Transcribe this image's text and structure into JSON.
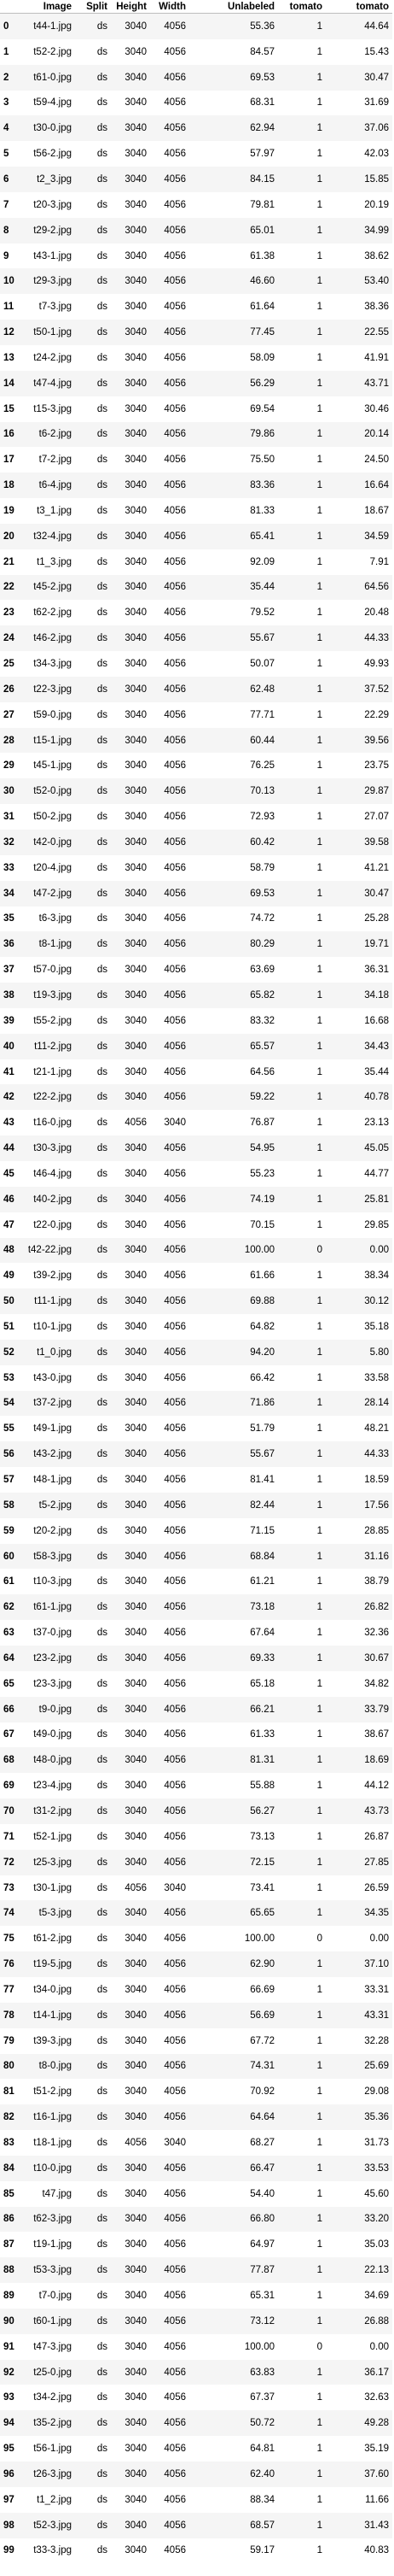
{
  "table": {
    "columns": [
      "",
      "Image",
      "Split",
      "Height",
      "Width",
      "Unlabeled",
      "tomato",
      "tomato"
    ],
    "rows": [
      [
        "0",
        "t44-1.jpg",
        "ds",
        "3040",
        "4056",
        "55.36",
        "1",
        "44.64"
      ],
      [
        "1",
        "t52-2.jpg",
        "ds",
        "3040",
        "4056",
        "84.57",
        "1",
        "15.43"
      ],
      [
        "2",
        "t61-0.jpg",
        "ds",
        "3040",
        "4056",
        "69.53",
        "1",
        "30.47"
      ],
      [
        "3",
        "t59-4.jpg",
        "ds",
        "3040",
        "4056",
        "68.31",
        "1",
        "31.69"
      ],
      [
        "4",
        "t30-0.jpg",
        "ds",
        "3040",
        "4056",
        "62.94",
        "1",
        "37.06"
      ],
      [
        "5",
        "t56-2.jpg",
        "ds",
        "3040",
        "4056",
        "57.97",
        "1",
        "42.03"
      ],
      [
        "6",
        "t2_3.jpg",
        "ds",
        "3040",
        "4056",
        "84.15",
        "1",
        "15.85"
      ],
      [
        "7",
        "t20-3.jpg",
        "ds",
        "3040",
        "4056",
        "79.81",
        "1",
        "20.19"
      ],
      [
        "8",
        "t29-2.jpg",
        "ds",
        "3040",
        "4056",
        "65.01",
        "1",
        "34.99"
      ],
      [
        "9",
        "t43-1.jpg",
        "ds",
        "3040",
        "4056",
        "61.38",
        "1",
        "38.62"
      ],
      [
        "10",
        "t29-3.jpg",
        "ds",
        "3040",
        "4056",
        "46.60",
        "1",
        "53.40"
      ],
      [
        "11",
        "t7-3.jpg",
        "ds",
        "3040",
        "4056",
        "61.64",
        "1",
        "38.36"
      ],
      [
        "12",
        "t50-1.jpg",
        "ds",
        "3040",
        "4056",
        "77.45",
        "1",
        "22.55"
      ],
      [
        "13",
        "t24-2.jpg",
        "ds",
        "3040",
        "4056",
        "58.09",
        "1",
        "41.91"
      ],
      [
        "14",
        "t47-4.jpg",
        "ds",
        "3040",
        "4056",
        "56.29",
        "1",
        "43.71"
      ],
      [
        "15",
        "t15-3.jpg",
        "ds",
        "3040",
        "4056",
        "69.54",
        "1",
        "30.46"
      ],
      [
        "16",
        "t6-2.jpg",
        "ds",
        "3040",
        "4056",
        "79.86",
        "1",
        "20.14"
      ],
      [
        "17",
        "t7-2.jpg",
        "ds",
        "3040",
        "4056",
        "75.50",
        "1",
        "24.50"
      ],
      [
        "18",
        "t6-4.jpg",
        "ds",
        "3040",
        "4056",
        "83.36",
        "1",
        "16.64"
      ],
      [
        "19",
        "t3_1.jpg",
        "ds",
        "3040",
        "4056",
        "81.33",
        "1",
        "18.67"
      ],
      [
        "20",
        "t32-4.jpg",
        "ds",
        "3040",
        "4056",
        "65.41",
        "1",
        "34.59"
      ],
      [
        "21",
        "t1_3.jpg",
        "ds",
        "3040",
        "4056",
        "92.09",
        "1",
        "7.91"
      ],
      [
        "22",
        "t45-2.jpg",
        "ds",
        "3040",
        "4056",
        "35.44",
        "1",
        "64.56"
      ],
      [
        "23",
        "t62-2.jpg",
        "ds",
        "3040",
        "4056",
        "79.52",
        "1",
        "20.48"
      ],
      [
        "24",
        "t46-2.jpg",
        "ds",
        "3040",
        "4056",
        "55.67",
        "1",
        "44.33"
      ],
      [
        "25",
        "t34-3.jpg",
        "ds",
        "3040",
        "4056",
        "50.07",
        "1",
        "49.93"
      ],
      [
        "26",
        "t22-3.jpg",
        "ds",
        "3040",
        "4056",
        "62.48",
        "1",
        "37.52"
      ],
      [
        "27",
        "t59-0.jpg",
        "ds",
        "3040",
        "4056",
        "77.71",
        "1",
        "22.29"
      ],
      [
        "28",
        "t15-1.jpg",
        "ds",
        "3040",
        "4056",
        "60.44",
        "1",
        "39.56"
      ],
      [
        "29",
        "t45-1.jpg",
        "ds",
        "3040",
        "4056",
        "76.25",
        "1",
        "23.75"
      ],
      [
        "30",
        "t52-0.jpg",
        "ds",
        "3040",
        "4056",
        "70.13",
        "1",
        "29.87"
      ],
      [
        "31",
        "t50-2.jpg",
        "ds",
        "3040",
        "4056",
        "72.93",
        "1",
        "27.07"
      ],
      [
        "32",
        "t42-0.jpg",
        "ds",
        "3040",
        "4056",
        "60.42",
        "1",
        "39.58"
      ],
      [
        "33",
        "t20-4.jpg",
        "ds",
        "3040",
        "4056",
        "58.79",
        "1",
        "41.21"
      ],
      [
        "34",
        "t47-2.jpg",
        "ds",
        "3040",
        "4056",
        "69.53",
        "1",
        "30.47"
      ],
      [
        "35",
        "t6-3.jpg",
        "ds",
        "3040",
        "4056",
        "74.72",
        "1",
        "25.28"
      ],
      [
        "36",
        "t8-1.jpg",
        "ds",
        "3040",
        "4056",
        "80.29",
        "1",
        "19.71"
      ],
      [
        "37",
        "t57-0.jpg",
        "ds",
        "3040",
        "4056",
        "63.69",
        "1",
        "36.31"
      ],
      [
        "38",
        "t19-3.jpg",
        "ds",
        "3040",
        "4056",
        "65.82",
        "1",
        "34.18"
      ],
      [
        "39",
        "t55-2.jpg",
        "ds",
        "3040",
        "4056",
        "83.32",
        "1",
        "16.68"
      ],
      [
        "40",
        "t11-2.jpg",
        "ds",
        "3040",
        "4056",
        "65.57",
        "1",
        "34.43"
      ],
      [
        "41",
        "t21-1.jpg",
        "ds",
        "3040",
        "4056",
        "64.56",
        "1",
        "35.44"
      ],
      [
        "42",
        "t22-2.jpg",
        "ds",
        "3040",
        "4056",
        "59.22",
        "1",
        "40.78"
      ],
      [
        "43",
        "t16-0.jpg",
        "ds",
        "4056",
        "3040",
        "76.87",
        "1",
        "23.13"
      ],
      [
        "44",
        "t30-3.jpg",
        "ds",
        "3040",
        "4056",
        "54.95",
        "1",
        "45.05"
      ],
      [
        "45",
        "t46-4.jpg",
        "ds",
        "3040",
        "4056",
        "55.23",
        "1",
        "44.77"
      ],
      [
        "46",
        "t40-2.jpg",
        "ds",
        "3040",
        "4056",
        "74.19",
        "1",
        "25.81"
      ],
      [
        "47",
        "t22-0.jpg",
        "ds",
        "3040",
        "4056",
        "70.15",
        "1",
        "29.85"
      ],
      [
        "48",
        "t42-22.jpg",
        "ds",
        "3040",
        "4056",
        "100.00",
        "0",
        "0.00"
      ],
      [
        "49",
        "t39-2.jpg",
        "ds",
        "3040",
        "4056",
        "61.66",
        "1",
        "38.34"
      ],
      [
        "50",
        "t11-1.jpg",
        "ds",
        "3040",
        "4056",
        "69.88",
        "1",
        "30.12"
      ],
      [
        "51",
        "t10-1.jpg",
        "ds",
        "3040",
        "4056",
        "64.82",
        "1",
        "35.18"
      ],
      [
        "52",
        "t1_0.jpg",
        "ds",
        "3040",
        "4056",
        "94.20",
        "1",
        "5.80"
      ],
      [
        "53",
        "t43-0.jpg",
        "ds",
        "3040",
        "4056",
        "66.42",
        "1",
        "33.58"
      ],
      [
        "54",
        "t37-2.jpg",
        "ds",
        "3040",
        "4056",
        "71.86",
        "1",
        "28.14"
      ],
      [
        "55",
        "t49-1.jpg",
        "ds",
        "3040",
        "4056",
        "51.79",
        "1",
        "48.21"
      ],
      [
        "56",
        "t43-2.jpg",
        "ds",
        "3040",
        "4056",
        "55.67",
        "1",
        "44.33"
      ],
      [
        "57",
        "t48-1.jpg",
        "ds",
        "3040",
        "4056",
        "81.41",
        "1",
        "18.59"
      ],
      [
        "58",
        "t5-2.jpg",
        "ds",
        "3040",
        "4056",
        "82.44",
        "1",
        "17.56"
      ],
      [
        "59",
        "t20-2.jpg",
        "ds",
        "3040",
        "4056",
        "71.15",
        "1",
        "28.85"
      ],
      [
        "60",
        "t58-3.jpg",
        "ds",
        "3040",
        "4056",
        "68.84",
        "1",
        "31.16"
      ],
      [
        "61",
        "t10-3.jpg",
        "ds",
        "3040",
        "4056",
        "61.21",
        "1",
        "38.79"
      ],
      [
        "62",
        "t61-1.jpg",
        "ds",
        "3040",
        "4056",
        "73.18",
        "1",
        "26.82"
      ],
      [
        "63",
        "t37-0.jpg",
        "ds",
        "3040",
        "4056",
        "67.64",
        "1",
        "32.36"
      ],
      [
        "64",
        "t23-2.jpg",
        "ds",
        "3040",
        "4056",
        "69.33",
        "1",
        "30.67"
      ],
      [
        "65",
        "t23-3.jpg",
        "ds",
        "3040",
        "4056",
        "65.18",
        "1",
        "34.82"
      ],
      [
        "66",
        "t9-0.jpg",
        "ds",
        "3040",
        "4056",
        "66.21",
        "1",
        "33.79"
      ],
      [
        "67",
        "t49-0.jpg",
        "ds",
        "3040",
        "4056",
        "61.33",
        "1",
        "38.67"
      ],
      [
        "68",
        "t48-0.jpg",
        "ds",
        "3040",
        "4056",
        "81.31",
        "1",
        "18.69"
      ],
      [
        "69",
        "t23-4.jpg",
        "ds",
        "3040",
        "4056",
        "55.88",
        "1",
        "44.12"
      ],
      [
        "70",
        "t31-2.jpg",
        "ds",
        "3040",
        "4056",
        "56.27",
        "1",
        "43.73"
      ],
      [
        "71",
        "t52-1.jpg",
        "ds",
        "3040",
        "4056",
        "73.13",
        "1",
        "26.87"
      ],
      [
        "72",
        "t25-3.jpg",
        "ds",
        "3040",
        "4056",
        "72.15",
        "1",
        "27.85"
      ],
      [
        "73",
        "t30-1.jpg",
        "ds",
        "4056",
        "3040",
        "73.41",
        "1",
        "26.59"
      ],
      [
        "74",
        "t5-3.jpg",
        "ds",
        "3040",
        "4056",
        "65.65",
        "1",
        "34.35"
      ],
      [
        "75",
        "t61-2.jpg",
        "ds",
        "3040",
        "4056",
        "100.00",
        "0",
        "0.00"
      ],
      [
        "76",
        "t19-5.jpg",
        "ds",
        "3040",
        "4056",
        "62.90",
        "1",
        "37.10"
      ],
      [
        "77",
        "t34-0.jpg",
        "ds",
        "3040",
        "4056",
        "66.69",
        "1",
        "33.31"
      ],
      [
        "78",
        "t14-1.jpg",
        "ds",
        "3040",
        "4056",
        "56.69",
        "1",
        "43.31"
      ],
      [
        "79",
        "t39-3.jpg",
        "ds",
        "3040",
        "4056",
        "67.72",
        "1",
        "32.28"
      ],
      [
        "80",
        "t8-0.jpg",
        "ds",
        "3040",
        "4056",
        "74.31",
        "1",
        "25.69"
      ],
      [
        "81",
        "t51-2.jpg",
        "ds",
        "3040",
        "4056",
        "70.92",
        "1",
        "29.08"
      ],
      [
        "82",
        "t16-1.jpg",
        "ds",
        "3040",
        "4056",
        "64.64",
        "1",
        "35.36"
      ],
      [
        "83",
        "t18-1.jpg",
        "ds",
        "4056",
        "3040",
        "68.27",
        "1",
        "31.73"
      ],
      [
        "84",
        "t10-0.jpg",
        "ds",
        "3040",
        "4056",
        "66.47",
        "1",
        "33.53"
      ],
      [
        "85",
        "t47.jpg",
        "ds",
        "3040",
        "4056",
        "54.40",
        "1",
        "45.60"
      ],
      [
        "86",
        "t62-3.jpg",
        "ds",
        "3040",
        "4056",
        "66.80",
        "1",
        "33.20"
      ],
      [
        "87",
        "t19-1.jpg",
        "ds",
        "3040",
        "4056",
        "64.97",
        "1",
        "35.03"
      ],
      [
        "88",
        "t53-3.jpg",
        "ds",
        "3040",
        "4056",
        "77.87",
        "1",
        "22.13"
      ],
      [
        "89",
        "t7-0.jpg",
        "ds",
        "3040",
        "4056",
        "65.31",
        "1",
        "34.69"
      ],
      [
        "90",
        "t60-1.jpg",
        "ds",
        "3040",
        "4056",
        "73.12",
        "1",
        "26.88"
      ],
      [
        "91",
        "t47-3.jpg",
        "ds",
        "3040",
        "4056",
        "100.00",
        "0",
        "0.00"
      ],
      [
        "92",
        "t25-0.jpg",
        "ds",
        "3040",
        "4056",
        "63.83",
        "1",
        "36.17"
      ],
      [
        "93",
        "t34-2.jpg",
        "ds",
        "3040",
        "4056",
        "67.37",
        "1",
        "32.63"
      ],
      [
        "94",
        "t35-2.jpg",
        "ds",
        "3040",
        "4056",
        "50.72",
        "1",
        "49.28"
      ],
      [
        "95",
        "t56-1.jpg",
        "ds",
        "3040",
        "4056",
        "64.81",
        "1",
        "35.19"
      ],
      [
        "96",
        "t26-3.jpg",
        "ds",
        "3040",
        "4056",
        "62.40",
        "1",
        "37.60"
      ],
      [
        "97",
        "t1_2.jpg",
        "ds",
        "3040",
        "4056",
        "88.34",
        "1",
        "11.66"
      ],
      [
        "98",
        "t52-3.jpg",
        "ds",
        "3040",
        "4056",
        "68.57",
        "1",
        "31.43"
      ],
      [
        "99",
        "t33-3.jpg",
        "ds",
        "3040",
        "4056",
        "59.17",
        "1",
        "40.83"
      ]
    ]
  }
}
